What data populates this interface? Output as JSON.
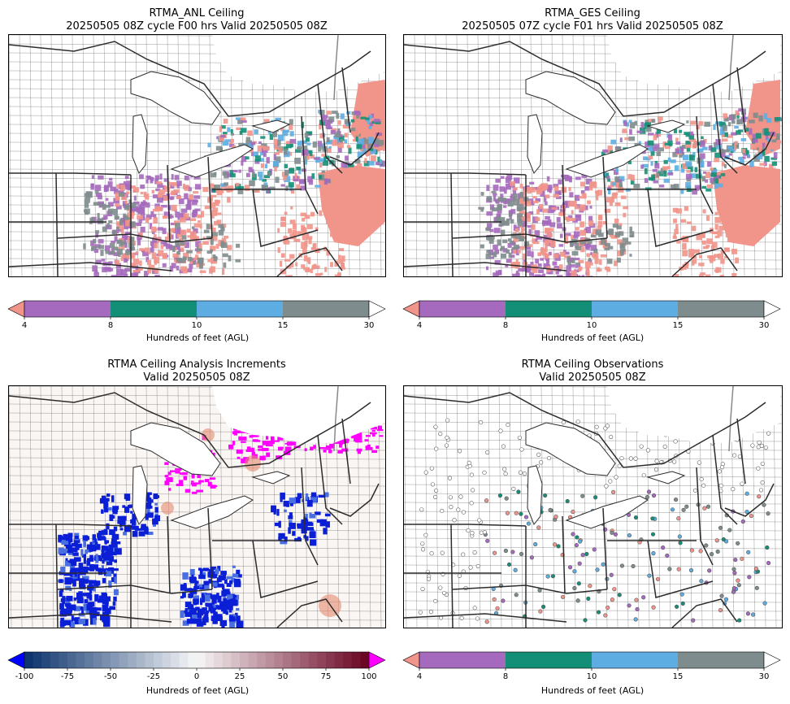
{
  "panels": [
    {
      "title_line1": "RTMA_ANL Ceiling",
      "title_line2": "20250505 08Z cycle F00 hrs Valid 20250505 08Z"
    },
    {
      "title_line1": "RTMA_GES Ceiling",
      "title_line2": "20250505 07Z cycle F01 hrs Valid 20250505 08Z"
    },
    {
      "title_line1": "RTMA Ceiling Analysis Increments",
      "title_line2": "Valid 20250505 08Z"
    },
    {
      "title_line1": "RTMA Ceiling Observations",
      "title_line2": "Valid 20250505 08Z"
    }
  ],
  "ceiling_colorbar": {
    "label": "Hundreds of feet (AGL)",
    "ticks": [
      "4",
      "8",
      "10",
      "15",
      "30"
    ],
    "colors": {
      "under": "#f1948a",
      "c1": "#a569bd",
      "c2": "#148f77",
      "c3": "#5dade2",
      "c4": "#7f8c8d",
      "over": "#ffffff"
    }
  },
  "increment_colorbar": {
    "label": "Hundreds of feet (AGL)",
    "ticks": [
      "-100",
      "-75",
      "-50",
      "-25",
      "0",
      "25",
      "50",
      "75",
      "100"
    ],
    "colors": {
      "under": "#0000ff",
      "over": "#ff00ff"
    }
  },
  "map_colors": {
    "salmon": "#f1948a",
    "purple": "#a569bd",
    "teal": "#148f77",
    "blue": "#5dade2",
    "gray": "#7f8c8d",
    "border": "#2c2c2c",
    "county": "#555555"
  }
}
